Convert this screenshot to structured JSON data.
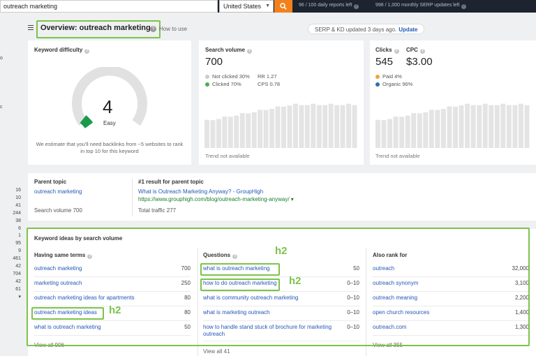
{
  "topbar": {
    "search_value": "outreach marketing",
    "country": "United States",
    "daily_reports": "96 / 100 daily reports left",
    "serp_updates": "998 / 1,000 monthly SERP updates left"
  },
  "gutter": {
    "marks": [
      "o",
      "c"
    ],
    "numbers": [
      "16",
      "10",
      "41",
      "244",
      "38",
      "6",
      "1",
      "95",
      "9",
      "461",
      "42",
      "704",
      "42",
      "61"
    ],
    "arrow": "▾"
  },
  "header": {
    "title": "Overview: outreach marketing",
    "how_to_use": "How to use",
    "serp_text": "SERP & KD updated 3 days ago.",
    "update_label": "Update"
  },
  "kd_card": {
    "title": "Keyword difficulty",
    "value": "4",
    "label": "Easy",
    "note": "We estimate that you'll need backlinks from ~5 websites to rank in top 10 for this keyword",
    "gauge_fraction": 0.04,
    "gauge_color": "#1a9a4a"
  },
  "sv_card": {
    "title": "Search volume",
    "value": "700",
    "not_clicked": "Not clicked 30%",
    "clicked": "Clicked 70%",
    "rr": "RR 1.27",
    "cps": "CPS 0.78",
    "trend": "Trend not available",
    "colors": {
      "not_clicked": "#cccccc",
      "clicked": "#4caf50"
    }
  },
  "cpc_card": {
    "clicks_title": "Clicks",
    "clicks_value": "545",
    "cpc_title": "CPC",
    "cpc_value": "$3.00",
    "paid": "Paid 4%",
    "organic": "Organic 96%",
    "trend": "Trend not available",
    "colors": {
      "paid": "#f0a33a",
      "organic": "#2a6fb3"
    }
  },
  "parent_topic": {
    "title": "Parent topic",
    "topic": "outreach marketing",
    "search_volume": "Search volume 700",
    "result_title": "#1 result for parent topic",
    "result_link": "What is Outreach Marketing Anyway? - GroupHigh",
    "result_url": "https://www.grouphigh.com/blog/outreach-marketing-anyway/ ▾",
    "total_traffic": "Total traffic 277"
  },
  "keyword_ideas": {
    "title": "Keyword ideas by search volume",
    "columns": [
      {
        "header": "Having same terms",
        "rows": [
          {
            "kw": "outreach marketing",
            "val": "700"
          },
          {
            "kw": "marketing outreach",
            "val": "250"
          },
          {
            "kw": "outreach marketing ideas for apartments",
            "val": "80"
          },
          {
            "kw": "outreach marketing ideas",
            "val": "80"
          },
          {
            "kw": "what is outreach marketing",
            "val": "50"
          }
        ],
        "view_all": "View all 906"
      },
      {
        "header": "Questions",
        "rows": [
          {
            "kw": "what is outreach marketing",
            "val": "50"
          },
          {
            "kw": "how to do outreach marketing",
            "val": "0–10"
          },
          {
            "kw": "what is community outreach marketing",
            "val": "0–10"
          },
          {
            "kw": "what is marketing outreach",
            "val": "0–10"
          },
          {
            "kw": "how to handle stand stuck of brochure for marketing outreach",
            "val": "0–10"
          }
        ],
        "view_all": "View all 41"
      },
      {
        "header": "Also rank for",
        "rows": [
          {
            "kw": "outreach",
            "val": "32,000"
          },
          {
            "kw": "outreach synonym",
            "val": "3,100"
          },
          {
            "kw": "outreach meaning",
            "val": "2,200"
          },
          {
            "kw": "open church resources",
            "val": "1,400"
          },
          {
            "kw": "outreach.com",
            "val": "1,300"
          }
        ],
        "view_all": "View all 355"
      }
    ]
  },
  "annotations": {
    "tag": "h2",
    "color": "#7cc349"
  }
}
